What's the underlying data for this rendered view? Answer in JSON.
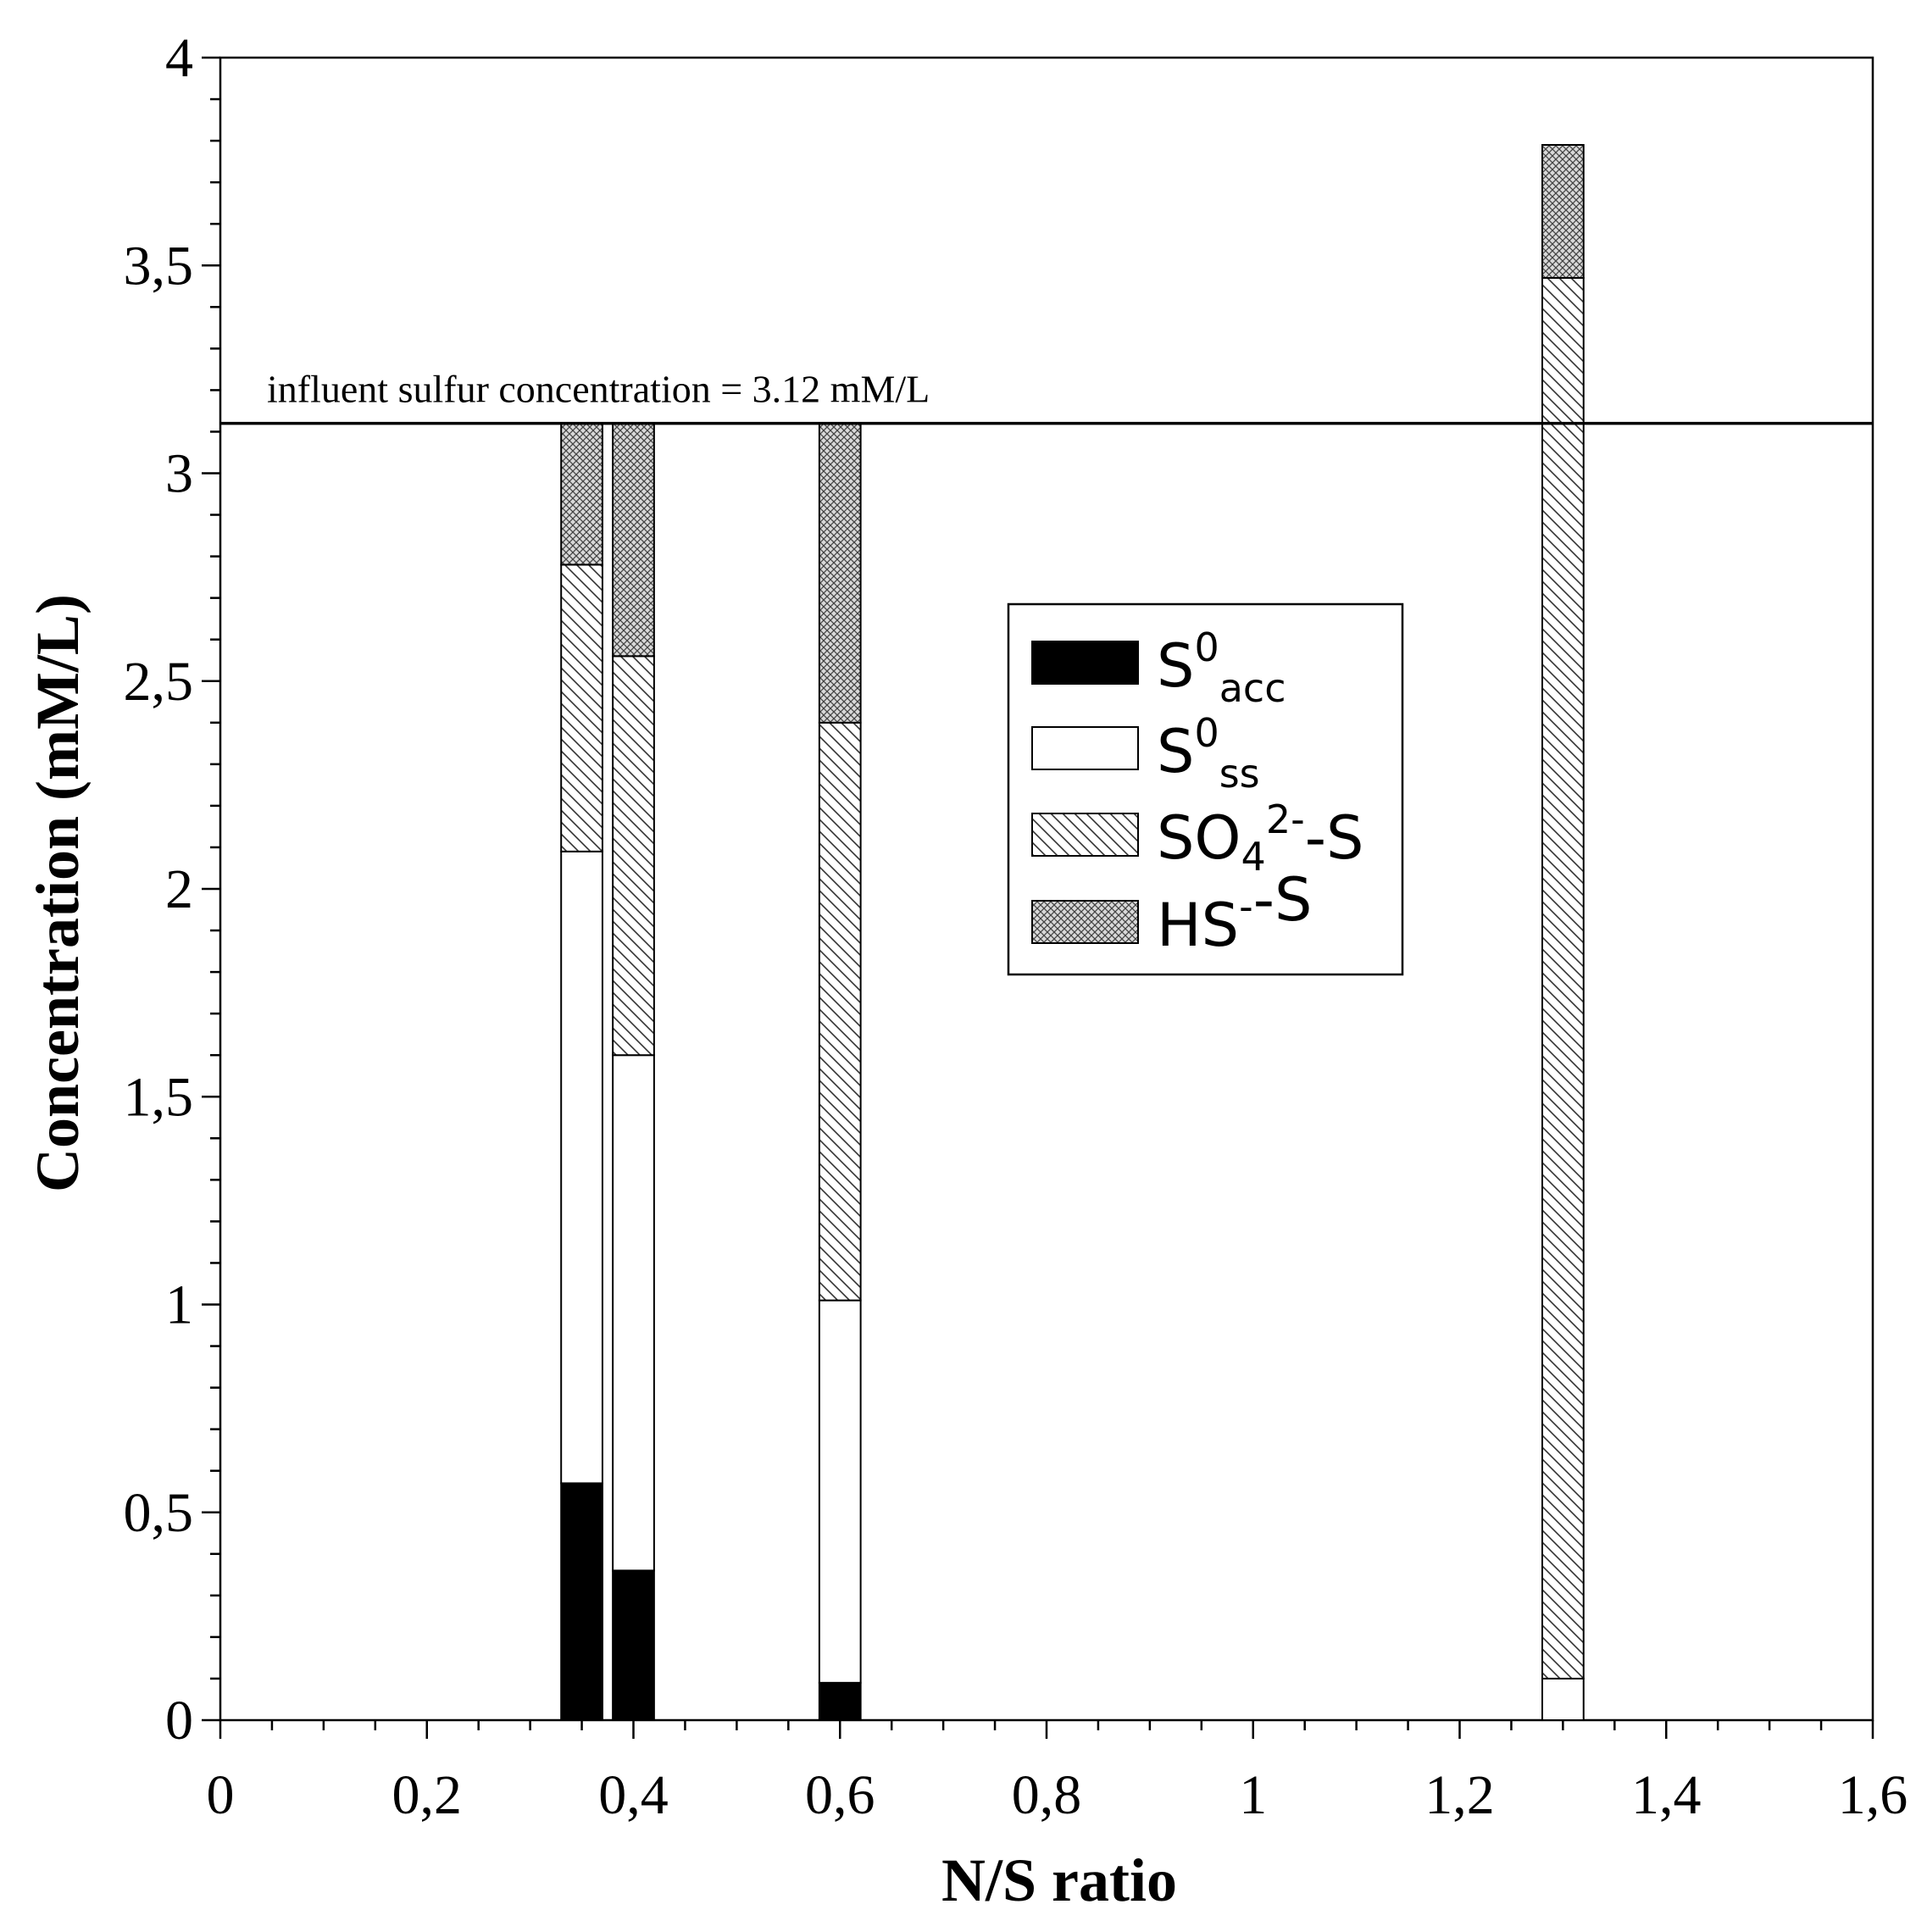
{
  "chart_data": {
    "type": "bar",
    "stacked": true,
    "xlabel": "N/S ratio",
    "ylabel": "Concentration (mM/L)",
    "xlim": [
      0,
      1.6
    ],
    "ylim": [
      0,
      4
    ],
    "x_ticks": [
      0,
      0.2,
      0.4,
      0.6,
      0.8,
      1,
      1.2,
      1.4,
      1.6
    ],
    "x_tick_labels": [
      "0",
      "0,2",
      "0,4",
      "0,6",
      "0,8",
      "1",
      "1,2",
      "1,4",
      "1,6"
    ],
    "y_ticks": [
      0,
      0.5,
      1,
      1.5,
      2,
      2.5,
      3,
      3.5,
      4
    ],
    "y_tick_labels": [
      "0",
      "0,5",
      "1",
      "1,5",
      "2",
      "2,5",
      "3",
      "3,5",
      "4"
    ],
    "grid": false,
    "legend_position": "center-right",
    "x": [
      0.35,
      0.4,
      0.6,
      1.3
    ],
    "bar_width": 0.04,
    "series": [
      {
        "legend": {
          "main": "S",
          "sup": "0",
          "sub": "acc",
          "tail": ""
        },
        "pattern": "solid-black",
        "values": [
          0.57,
          0.36,
          0.09,
          0.0
        ]
      },
      {
        "legend": {
          "main": "S",
          "sup": "0",
          "sub": "ss",
          "tail": ""
        },
        "pattern": "white",
        "values": [
          1.52,
          1.24,
          0.92,
          0.1
        ]
      },
      {
        "legend": {
          "main": "SO",
          "sub": "4",
          "sup": "2-",
          "tail": "-S"
        },
        "pattern": "diagonal-hatch",
        "values": [
          0.69,
          0.96,
          1.39,
          3.37
        ]
      },
      {
        "legend": {
          "main": "HS",
          "sup": "-",
          "sub": "",
          "tail": "-S"
        },
        "pattern": "crosshatch",
        "values": [
          0.34,
          0.56,
          0.72,
          0.32
        ]
      }
    ],
    "reference_line": {
      "y": 3.12,
      "label": "influent sulfur concentration = 3.12 mM/L"
    }
  },
  "colors": {
    "axis": "#000000",
    "solid": "#000000",
    "hatch": "#333333",
    "background": "#ffffff"
  }
}
